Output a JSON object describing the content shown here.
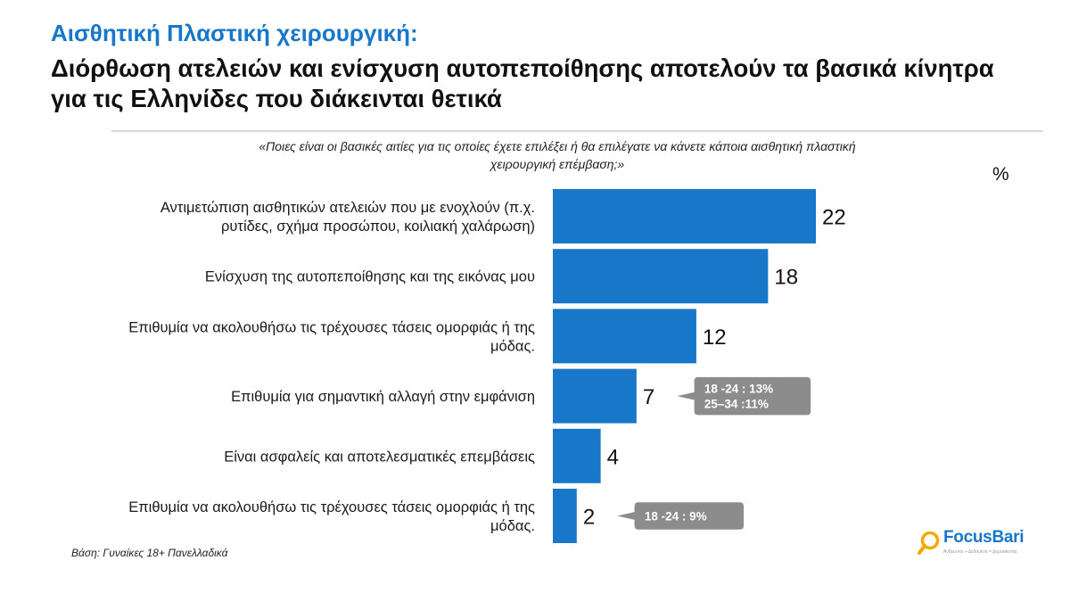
{
  "header": {
    "title_line1": "Αισθητική Πλαστική χειρουργική:",
    "title_line2": "Διόρθωση ατελειών και ενίσχυση αυτοπεποίθησης αποτελούν τα βασικά κίνητρα για τις Ελληνίδες που διάκεινται θετικά"
  },
  "question": "«Ποιες είναι οι βασικές αιτίες για τις οποίες έχετε επιλέξει ή θα επιλέγατε να κάνετε κάποια αισθητική πλαστική χειρουργική επέμβαση;»",
  "unit": "%",
  "base_note": "Βάση: Γυναίκες 18+ Πανελλαδικά",
  "logo": {
    "text": "FocusBari",
    "subtitle": "Άνθρωποι + Δεδομένα = Δημοσκοπία"
  },
  "colors": {
    "bar": "#1877C8",
    "title_accent": "#1877C8",
    "callout": "#8C8C8C"
  },
  "chart_data": {
    "type": "bar",
    "orientation": "horizontal",
    "categories": [
      [
        "Αντιμετώπιση αισθητικών ατελειών που με ενοχλούν (π.χ.",
        "ρυτίδες, σχήμα προσώπου, κοιλιακή χαλάρωση)"
      ],
      [
        "Ενίσχυση της αυτοπεποίθησης και της εικόνας μου"
      ],
      [
        "Επιθυμία να ακολουθήσω τις τρέχουσες τάσεις ομορφιάς ή της",
        "μόδας."
      ],
      [
        "Επιθυμία για σημαντική αλλαγή στην εμφάνιση"
      ],
      [
        "Είναι ασφαλείς και αποτελεσματικές επεμβάσεις"
      ],
      [
        "Επιθυμία να ακολουθήσω τις τρέχουσες τάσεις ομορφιάς ή της",
        "μόδας."
      ]
    ],
    "values": [
      22,
      18,
      12,
      7,
      4,
      2
    ],
    "xlim": [
      0,
      22
    ],
    "annotations": [
      {
        "index": 3,
        "lines": [
          "18 -24 : 13%",
          "25–34 :11%"
        ]
      },
      {
        "index": 5,
        "lines": [
          "18 -24 : 9%"
        ]
      }
    ]
  }
}
